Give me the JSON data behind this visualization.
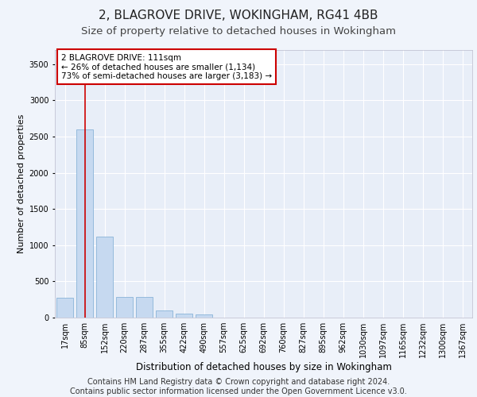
{
  "title": "2, BLAGROVE DRIVE, WOKINGHAM, RG41 4BB",
  "subtitle": "Size of property relative to detached houses in Wokingham",
  "xlabel": "Distribution of detached houses by size in Wokingham",
  "ylabel": "Number of detached properties",
  "categories": [
    "17sqm",
    "85sqm",
    "152sqm",
    "220sqm",
    "287sqm",
    "355sqm",
    "422sqm",
    "490sqm",
    "557sqm",
    "625sqm",
    "692sqm",
    "760sqm",
    "827sqm",
    "895sqm",
    "962sqm",
    "1030sqm",
    "1097sqm",
    "1165sqm",
    "1232sqm",
    "1300sqm",
    "1367sqm"
  ],
  "values": [
    270,
    2600,
    1120,
    285,
    285,
    95,
    55,
    40,
    0,
    0,
    0,
    0,
    0,
    0,
    0,
    0,
    0,
    0,
    0,
    0,
    0
  ],
  "bar_color": "#c6d9f0",
  "bar_edge_color": "#8ab4d8",
  "vline_x": 1,
  "vline_color": "#cc0000",
  "ylim": [
    0,
    3700
  ],
  "yticks": [
    0,
    500,
    1000,
    1500,
    2000,
    2500,
    3000,
    3500
  ],
  "annotation_text": "2 BLAGROVE DRIVE: 111sqm\n← 26% of detached houses are smaller (1,134)\n73% of semi-detached houses are larger (3,183) →",
  "annotation_box_color": "#ffffff",
  "annotation_box_edge_color": "#cc0000",
  "footer_line1": "Contains HM Land Registry data © Crown copyright and database right 2024.",
  "footer_line2": "Contains public sector information licensed under the Open Government Licence v3.0.",
  "bg_color": "#f0f4fb",
  "plot_bg_color": "#e8eef8",
  "grid_color": "#ffffff",
  "title_fontsize": 11,
  "subtitle_fontsize": 9.5,
  "footer_fontsize": 7,
  "tick_labelsize": 7,
  "ylabel_fontsize": 8,
  "xlabel_fontsize": 8.5
}
